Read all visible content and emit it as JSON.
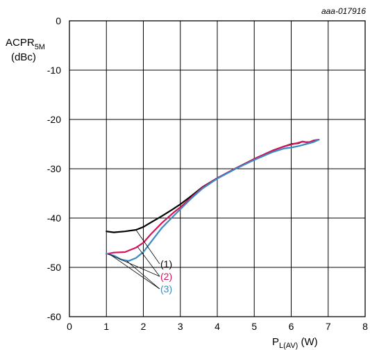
{
  "chart_data": {
    "type": "line",
    "reference": "aaa-017916",
    "ylabel_main": "ACPR",
    "ylabel_sub": "5M",
    "ylabel_unit": "(dBc)",
    "xlabel_main": "P",
    "xlabel_sub": "L(AV)",
    "xlabel_unit": " (W)",
    "xlim": [
      0,
      8
    ],
    "ylim": [
      -60,
      0
    ],
    "x_ticks": [
      0,
      1,
      2,
      3,
      4,
      5,
      6,
      7,
      8
    ],
    "y_ticks": [
      0,
      -10,
      -20,
      -30,
      -40,
      -50,
      -60
    ],
    "grid": true,
    "series": [
      {
        "name": "(1)",
        "color": "#000000",
        "x": [
          1.0,
          1.2,
          1.5,
          1.8,
          2.0,
          2.2,
          2.5,
          2.8,
          3.0,
          3.3,
          3.6,
          4.0,
          4.5,
          5.0,
          5.5,
          5.8,
          6.0,
          6.2,
          6.3,
          6.4,
          6.5,
          6.6,
          6.75
        ],
        "y": [
          -42.7,
          -42.9,
          -42.7,
          -42.4,
          -41.8,
          -40.9,
          -39.6,
          -38.2,
          -37.2,
          -35.5,
          -33.7,
          -31.9,
          -29.9,
          -28.0,
          -26.3,
          -25.5,
          -25.0,
          -24.8,
          -24.5,
          -24.6,
          -24.6,
          -24.3,
          -24.1
        ]
      },
      {
        "name": "(2)",
        "color": "#d4145a",
        "x": [
          1.0,
          1.2,
          1.5,
          1.8,
          2.0,
          2.2,
          2.5,
          2.8,
          3.0,
          3.3,
          3.6,
          4.0,
          4.5,
          5.0,
          5.5,
          5.8,
          6.0,
          6.2,
          6.3,
          6.4,
          6.5,
          6.6,
          6.75
        ],
        "y": [
          -47.3,
          -47.0,
          -46.9,
          -46.0,
          -45.0,
          -43.3,
          -41.0,
          -39.0,
          -37.8,
          -35.8,
          -33.8,
          -31.9,
          -29.9,
          -28.0,
          -26.3,
          -25.5,
          -25.1,
          -24.7,
          -24.5,
          -24.6,
          -24.6,
          -24.3,
          -24.1
        ]
      },
      {
        "name": "(3)",
        "color": "#3b8ac4",
        "x": [
          1.0,
          1.2,
          1.4,
          1.6,
          1.8,
          2.0,
          2.2,
          2.5,
          2.8,
          3.0,
          3.3,
          3.6,
          4.0,
          4.5,
          5.0,
          5.5,
          5.8,
          6.0,
          6.2,
          6.4,
          6.6,
          6.75
        ],
        "y": [
          -47.2,
          -47.6,
          -48.4,
          -48.7,
          -48.1,
          -46.9,
          -44.9,
          -42.0,
          -39.7,
          -38.2,
          -36.0,
          -34.0,
          -32.0,
          -30.0,
          -28.2,
          -26.6,
          -25.9,
          -25.7,
          -25.4,
          -25.0,
          -24.6,
          -24.1
        ]
      }
    ],
    "callouts": [
      {
        "text": "(1)",
        "color": "#000000"
      },
      {
        "text": "(2)",
        "color": "#d4145a"
      },
      {
        "text": "(3)",
        "color": "#3b8ac4"
      }
    ]
  }
}
